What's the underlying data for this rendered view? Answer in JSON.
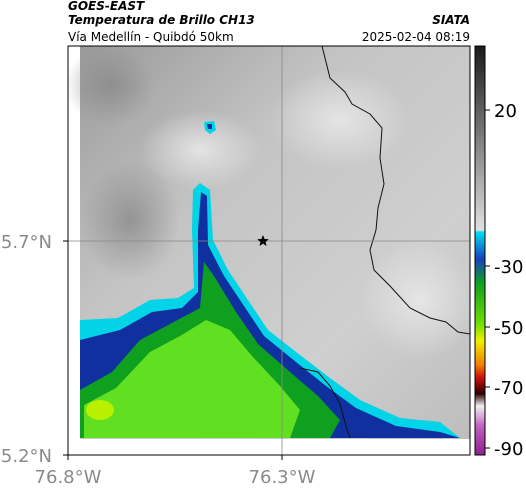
{
  "header": {
    "satellite": "GOES-EAST",
    "product": "Temperatura de Brillo CH13",
    "region": "Vía Medellín - Quibdó 50km",
    "source": "SIATA",
    "datetime": "2025-02-04 08:19"
  },
  "map": {
    "lat_ticks": [
      "5.7°N",
      "5.2°N"
    ],
    "lon_ticks": [
      "76.8°W",
      "76.3°W"
    ],
    "marker_icon": "star-icon"
  },
  "colorbar": {
    "labels": [
      "20",
      "-30",
      "-50",
      "-70",
      "-90"
    ],
    "colors": {
      "warm": "#1a1a1a",
      "mid": "#d8d8d8",
      "cyan": "#00d8e8",
      "blue": "#1030a0",
      "green": "#30c020",
      "yellow": "#f0f000",
      "red": "#d01010",
      "magenta": "#b040a0"
    }
  }
}
